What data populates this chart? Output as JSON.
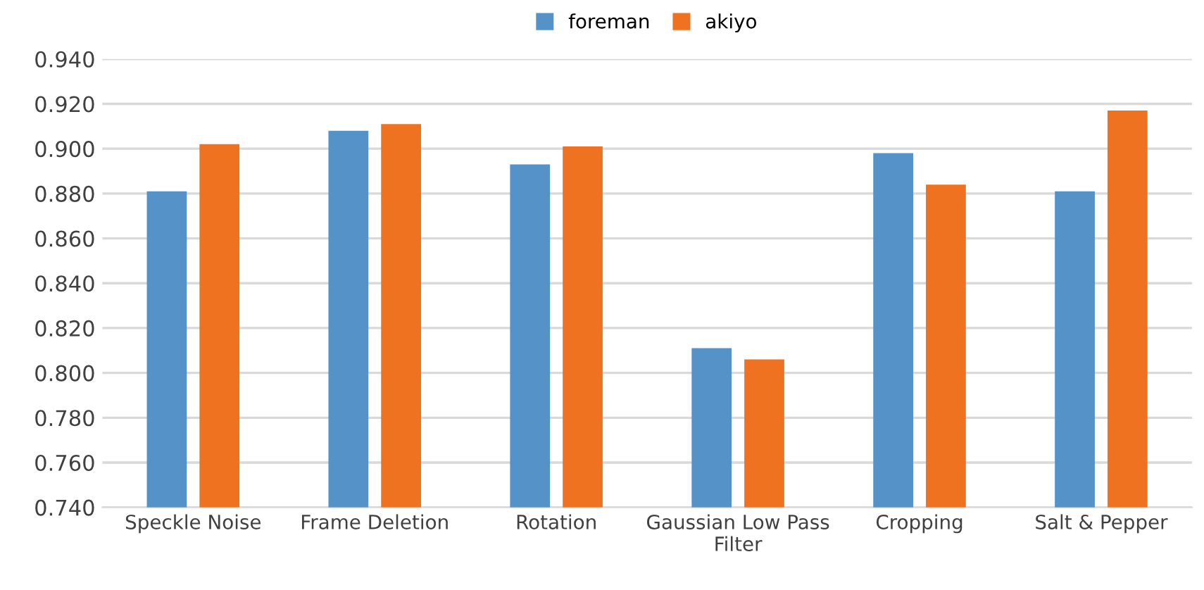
{
  "chart_data": {
    "type": "bar",
    "categories": [
      "Speckle Noise",
      "Frame Deletion",
      "Rotation",
      "Gaussian Low Pass\nFilter",
      "Cropping",
      "Salt & Pepper"
    ],
    "series": [
      {
        "name": "foreman",
        "color": "#5592c8",
        "values": [
          0.881,
          0.908,
          0.893,
          0.811,
          0.898,
          0.881
        ]
      },
      {
        "name": "akiyo",
        "color": "#ee7220",
        "values": [
          0.902,
          0.911,
          0.901,
          0.806,
          0.884,
          0.917
        ]
      }
    ],
    "ylim": [
      0.74,
      0.94
    ],
    "yticks": [
      {
        "value": 0.74,
        "label": "0.740"
      },
      {
        "value": 0.76,
        "label": "0.760"
      },
      {
        "value": 0.78,
        "label": "0.780"
      },
      {
        "value": 0.8,
        "label": "0.800"
      },
      {
        "value": 0.82,
        "label": "0.820"
      },
      {
        "value": 0.84,
        "label": "0.840"
      },
      {
        "value": 0.86,
        "label": "0.860"
      },
      {
        "value": 0.88,
        "label": "0.880"
      },
      {
        "value": 0.9,
        "label": "0.900"
      },
      {
        "value": 0.92,
        "label": "0.920"
      },
      {
        "value": 0.94,
        "label": "0.940"
      }
    ],
    "grid": "y",
    "legend": "top"
  }
}
